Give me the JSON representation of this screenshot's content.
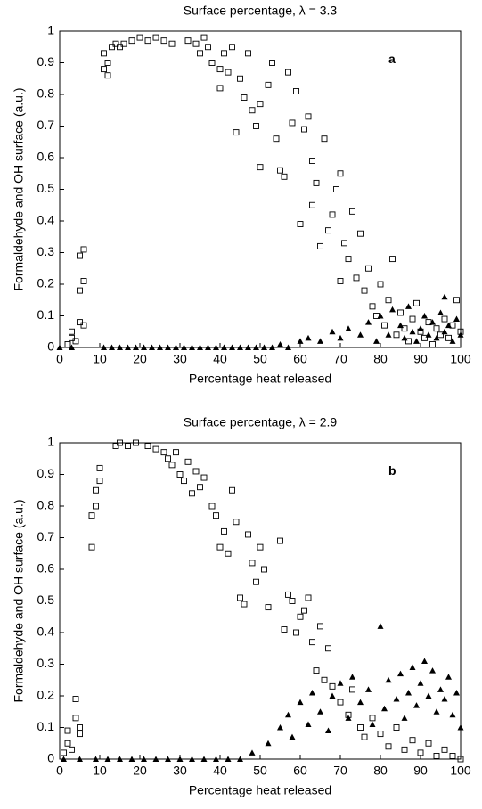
{
  "chart_data": [
    {
      "type": "scatter",
      "title": "Surface percentage, λ = 3.3",
      "xlabel": "Percentage heat released",
      "ylabel": "Formaldehyde and OH surface (a.u.)",
      "annotation": "a",
      "xlim": [
        0,
        100
      ],
      "ylim": [
        0,
        1
      ],
      "xticks": [
        0,
        10,
        20,
        30,
        40,
        50,
        60,
        70,
        80,
        90,
        100
      ],
      "yticks": [
        0,
        0.1,
        0.2,
        0.3,
        0.4,
        0.5,
        0.6,
        0.7,
        0.8,
        0.9,
        1
      ],
      "series": [
        {
          "marker": "square",
          "color": "#000000",
          "x": [
            2,
            3,
            3,
            4,
            5,
            5,
            5,
            6,
            6,
            6,
            11,
            11,
            12,
            12,
            13,
            14,
            15,
            16,
            18,
            20,
            22,
            24,
            26,
            28,
            32,
            34,
            35,
            36,
            37,
            38,
            40,
            40,
            41,
            42,
            43,
            44,
            45,
            46,
            47,
            48,
            49,
            50,
            50,
            52,
            53,
            54,
            55,
            56,
            57,
            58,
            59,
            60,
            61,
            62,
            63,
            63,
            64,
            65,
            66,
            67,
            68,
            69,
            70,
            70,
            71,
            72,
            73,
            74,
            75,
            76,
            77,
            78,
            79,
            80,
            81,
            82,
            83,
            84,
            85,
            86,
            87,
            88,
            89,
            90,
            91,
            92,
            93,
            94,
            95,
            96,
            97,
            98,
            99,
            100
          ],
          "values": [
            0.01,
            0.03,
            0.05,
            0.02,
            0.08,
            0.18,
            0.29,
            0.21,
            0.31,
            0.07,
            0.93,
            0.88,
            0.9,
            0.86,
            0.95,
            0.96,
            0.95,
            0.96,
            0.97,
            0.98,
            0.97,
            0.98,
            0.97,
            0.96,
            0.97,
            0.96,
            0.93,
            0.98,
            0.95,
            0.9,
            0.88,
            0.82,
            0.93,
            0.87,
            0.95,
            0.68,
            0.85,
            0.79,
            0.93,
            0.75,
            0.7,
            0.57,
            0.77,
            0.83,
            0.9,
            0.66,
            0.56,
            0.54,
            0.87,
            0.71,
            0.81,
            0.39,
            0.69,
            0.73,
            0.59,
            0.45,
            0.52,
            0.32,
            0.66,
            0.37,
            0.42,
            0.5,
            0.55,
            0.21,
            0.33,
            0.28,
            0.43,
            0.22,
            0.36,
            0.18,
            0.25,
            0.13,
            0.1,
            0.2,
            0.07,
            0.15,
            0.28,
            0.04,
            0.11,
            0.06,
            0.02,
            0.09,
            0.14,
            0.05,
            0.03,
            0.08,
            0.01,
            0.06,
            0.04,
            0.09,
            0.03,
            0.07,
            0.15,
            0.05
          ]
        },
        {
          "marker": "triangle",
          "color": "#000000",
          "x": [
            0,
            3,
            11,
            13,
            15,
            17,
            19,
            21,
            23,
            25,
            27,
            29,
            31,
            33,
            35,
            37,
            39,
            41,
            43,
            45,
            47,
            49,
            51,
            53,
            57,
            55,
            60,
            62,
            65,
            68,
            70,
            72,
            75,
            77,
            79,
            80,
            82,
            83,
            85,
            86,
            87,
            88,
            89,
            90,
            91,
            92,
            93,
            94,
            95,
            96,
            96,
            97,
            98,
            99,
            100
          ],
          "values": [
            0,
            0,
            0,
            0,
            0,
            0,
            0,
            0,
            0,
            0,
            0,
            0,
            0,
            0,
            0,
            0,
            0,
            0,
            0,
            0,
            0,
            0,
            0,
            0,
            0,
            0.01,
            0.02,
            0.03,
            0.02,
            0.05,
            0.03,
            0.06,
            0.04,
            0.08,
            0.02,
            0.1,
            0.04,
            0.12,
            0.07,
            0.03,
            0.13,
            0.05,
            0.02,
            0.06,
            0.1,
            0.04,
            0.08,
            0.03,
            0.11,
            0.16,
            0.05,
            0.07,
            0.02,
            0.09,
            0.04
          ]
        }
      ]
    },
    {
      "type": "scatter",
      "title": "Surface percentage, λ = 2.9",
      "xlabel": "Percentage heat released",
      "ylabel": "Formaldehyde and OH surface (a.u.)",
      "annotation": "b",
      "xlim": [
        0,
        100
      ],
      "ylim": [
        0,
        1
      ],
      "xticks": [
        0,
        10,
        20,
        30,
        40,
        50,
        60,
        70,
        80,
        90,
        100
      ],
      "yticks": [
        0,
        0.1,
        0.2,
        0.3,
        0.4,
        0.5,
        0.6,
        0.7,
        0.8,
        0.9,
        1
      ],
      "series": [
        {
          "marker": "square",
          "color": "#000000",
          "x": [
            1,
            2,
            2,
            3,
            4,
            4,
            5,
            5,
            8,
            8,
            9,
            9,
            10,
            10,
            14,
            15,
            17,
            19,
            22,
            24,
            26,
            27,
            28,
            29,
            30,
            31,
            32,
            33,
            34,
            35,
            36,
            38,
            39,
            40,
            41,
            42,
            43,
            44,
            45,
            46,
            47,
            48,
            49,
            50,
            51,
            52,
            55,
            56,
            57,
            58,
            59,
            60,
            61,
            62,
            63,
            64,
            65,
            66,
            67,
            68,
            70,
            72,
            73,
            75,
            76,
            78,
            80,
            82,
            84,
            86,
            88,
            90,
            92,
            94,
            96,
            98,
            100
          ],
          "values": [
            0.02,
            0.05,
            0.09,
            0.03,
            0.13,
            0.19,
            0.08,
            0.1,
            0.67,
            0.77,
            0.8,
            0.85,
            0.88,
            0.92,
            0.99,
            1,
            0.99,
            1,
            0.99,
            0.98,
            0.97,
            0.95,
            0.93,
            0.97,
            0.9,
            0.88,
            0.94,
            0.84,
            0.91,
            0.86,
            0.89,
            0.8,
            0.77,
            0.67,
            0.72,
            0.65,
            0.85,
            0.75,
            0.51,
            0.49,
            0.71,
            0.62,
            0.56,
            0.67,
            0.6,
            0.48,
            0.69,
            0.41,
            0.52,
            0.5,
            0.4,
            0.45,
            0.47,
            0.51,
            0.37,
            0.28,
            0.42,
            0.25,
            0.35,
            0.23,
            0.18,
            0.14,
            0.22,
            0.1,
            0.07,
            0.13,
            0.08,
            0.04,
            0.1,
            0.03,
            0.06,
            0.02,
            0.05,
            0.01,
            0.03,
            0.01,
            0
          ]
        },
        {
          "marker": "triangle",
          "color": "#000000",
          "x": [
            1,
            5,
            9,
            12,
            15,
            18,
            21,
            24,
            27,
            30,
            33,
            36,
            39,
            42,
            45,
            48,
            52,
            55,
            57,
            58,
            60,
            62,
            63,
            65,
            67,
            68,
            70,
            72,
            73,
            75,
            77,
            78,
            80,
            81,
            82,
            84,
            85,
            86,
            87,
            88,
            89,
            90,
            91,
            92,
            93,
            94,
            95,
            96,
            97,
            98,
            99,
            100
          ],
          "values": [
            0,
            0,
            0,
            0,
            0,
            0,
            0,
            0,
            0,
            0,
            0,
            0,
            0,
            0,
            0,
            0.02,
            0.05,
            0.1,
            0.14,
            0.07,
            0.18,
            0.11,
            0.21,
            0.15,
            0.09,
            0.2,
            0.24,
            0.13,
            0.26,
            0.18,
            0.22,
            0.11,
            0.42,
            0.16,
            0.25,
            0.19,
            0.27,
            0.13,
            0.21,
            0.29,
            0.17,
            0.24,
            0.31,
            0.2,
            0.28,
            0.15,
            0.22,
            0.19,
            0.26,
            0.14,
            0.21,
            0.1
          ]
        }
      ]
    }
  ]
}
